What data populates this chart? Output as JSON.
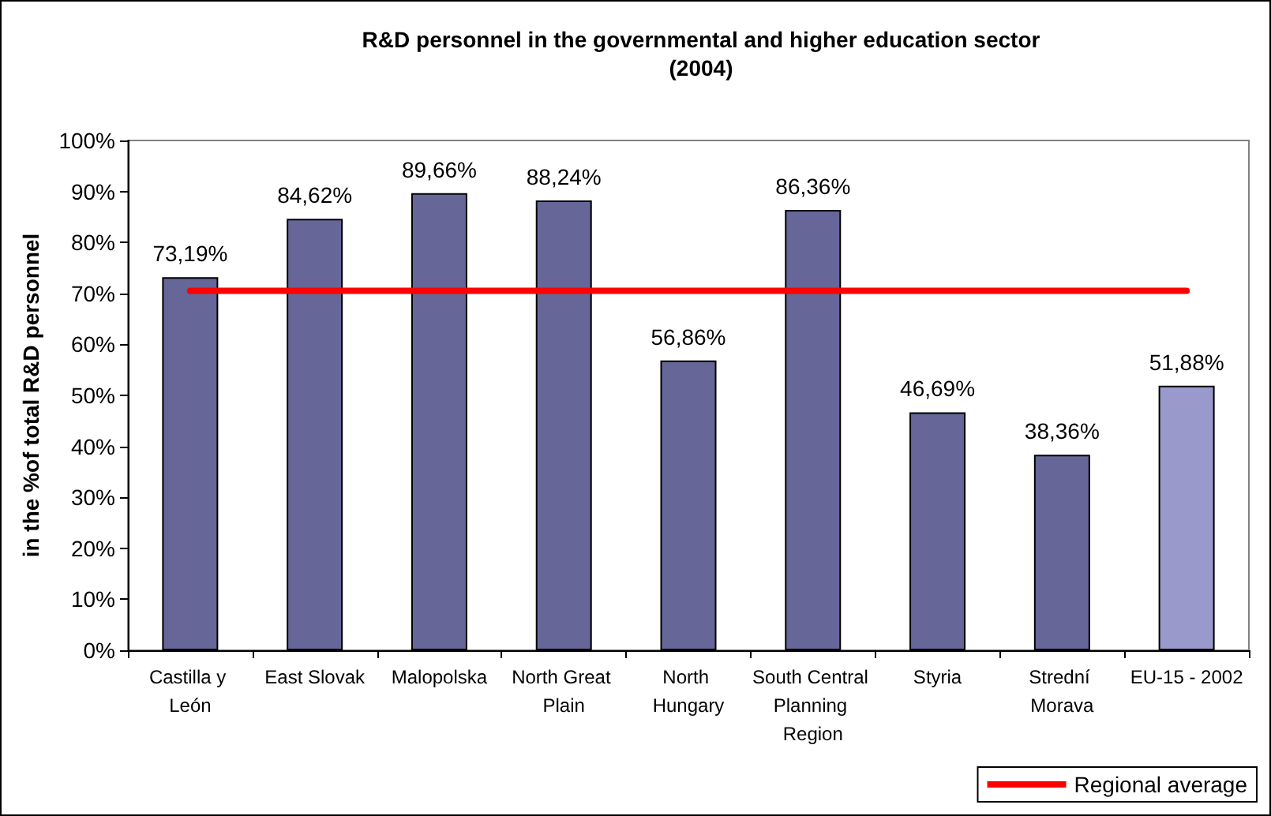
{
  "chart_data": {
    "type": "bar",
    "title": "R&D personnel in the governmental and higher education sector",
    "subtitle": "(2004)",
    "ylabel": "in the %of total R&D personnel",
    "categories": [
      "Castilla y León",
      "East Slovak",
      "Malopolska",
      "North Great Plain",
      "North Hungary",
      "South Central Planning Region",
      "Styria",
      "Strední Morava",
      "EU-15 - 2002"
    ],
    "series": [
      {
        "colors": [
          "#666699",
          "#666699",
          "#666699",
          "#666699",
          "#666699",
          "#666699",
          "#666699",
          "#666699",
          "#9999cc"
        ],
        "values": [
          73.19,
          84.62,
          89.66,
          88.24,
          56.86,
          86.36,
          46.69,
          38.36,
          51.88
        ],
        "value_labels": [
          "73,19%",
          "84,62%",
          "89,66%",
          "88,24%",
          "56,86%",
          "86,36%",
          "46,69%",
          "38,36%",
          "51,88%"
        ]
      },
      {
        "type": "line",
        "name": "Regional average",
        "color": "#ff0000",
        "values": [
          70.5,
          70.5,
          70.5,
          70.5,
          70.5,
          70.5,
          70.5,
          70.5,
          70.5
        ],
        "marker": "none"
      }
    ],
    "ylim": [
      0,
      100
    ],
    "yticks": [
      {
        "value": 0,
        "label": "0%"
      },
      {
        "value": 10,
        "label": "10%"
      },
      {
        "value": 20,
        "label": "20%"
      },
      {
        "value": 30,
        "label": "30%"
      },
      {
        "value": 40,
        "label": "40%"
      },
      {
        "value": 50,
        "label": "50%"
      },
      {
        "value": 60,
        "label": "60%"
      },
      {
        "value": 70,
        "label": "70%"
      },
      {
        "value": 80,
        "label": "80%"
      },
      {
        "value": 90,
        "label": "90%"
      },
      {
        "value": 100,
        "label": "100%"
      }
    ],
    "grid": false,
    "legend": "bottom right"
  }
}
